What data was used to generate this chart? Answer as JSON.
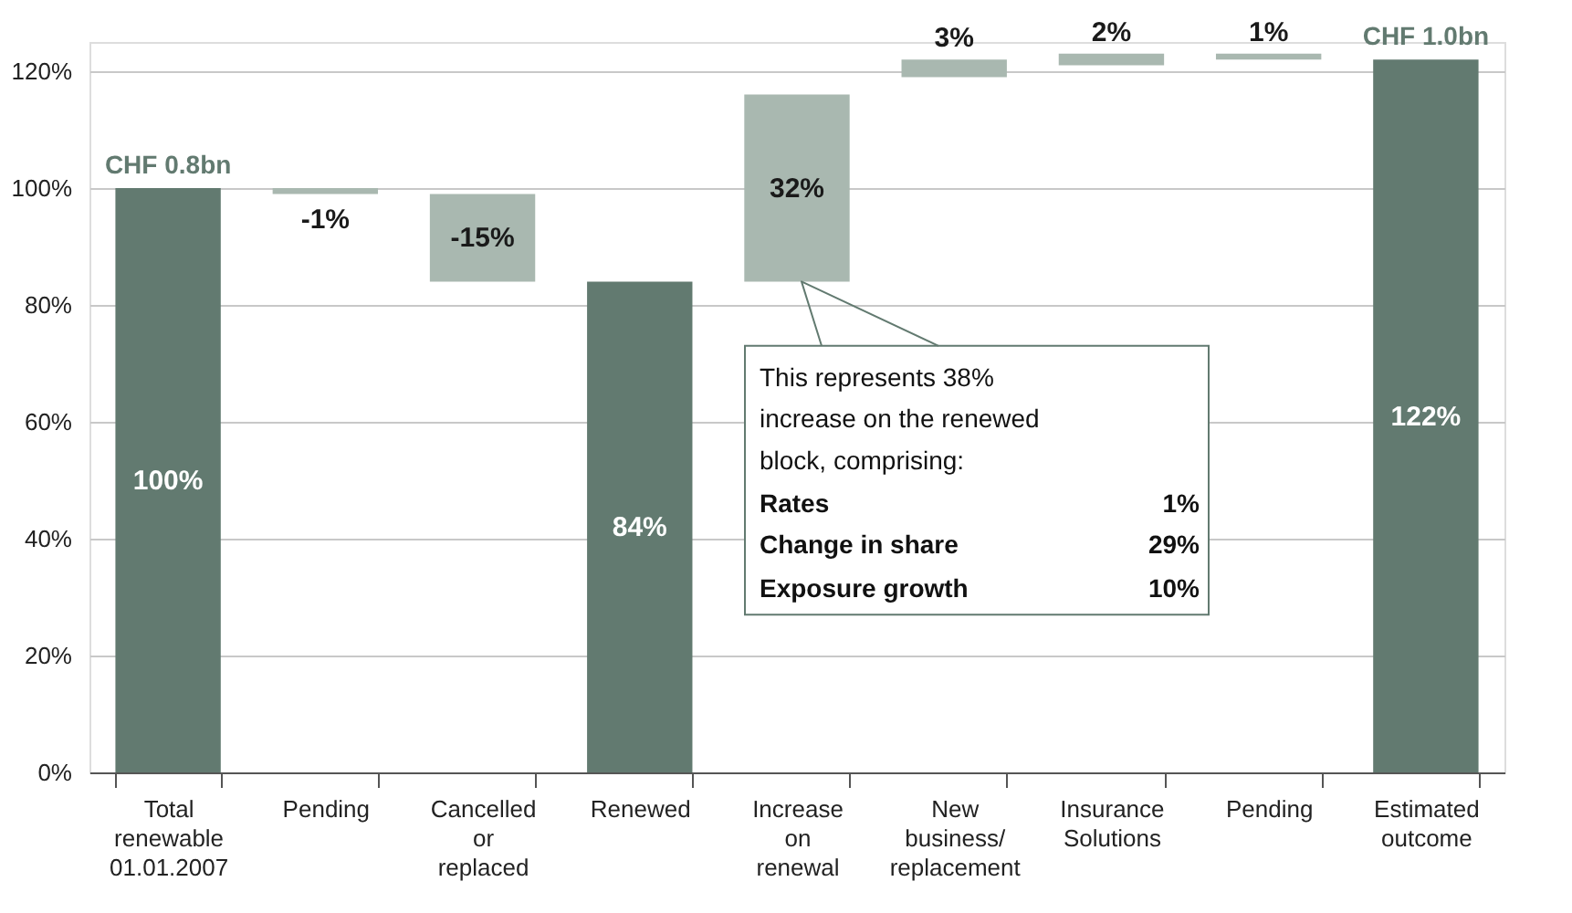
{
  "chart_data": {
    "type": "bar",
    "categories": [
      "Total renewable 01.01.2007",
      "Pending",
      "Cancelled or replaced",
      "Renewed",
      "Increase on renewal",
      "New business/ replacement",
      "Insurance Solutions",
      "Pending",
      "Estimated outcome"
    ],
    "values": [
      100,
      -1,
      -15,
      84,
      32,
      3,
      2,
      1,
      122
    ],
    "base": [
      0,
      100,
      99,
      0,
      84,
      119,
      121,
      122,
      0
    ],
    "colors": [
      "#627a70",
      "#a9b8b0",
      "#a9b8b0",
      "#627a70",
      "#a9b8b0",
      "#a9b8b0",
      "#a9b8b0",
      "#a9b8b0",
      "#627a70"
    ],
    "value_labels": [
      "100%",
      "-1%",
      "-15%",
      "84%",
      "32%",
      "3%",
      "2%",
      "1%",
      "122%"
    ],
    "ylim": [
      0,
      125
    ],
    "yticks": [
      {
        "value": 0,
        "label": "0%"
      },
      {
        "value": 20,
        "label": "20%"
      },
      {
        "value": 40,
        "label": "40%"
      },
      {
        "value": 60,
        "label": "60%"
      },
      {
        "value": 80,
        "label": "80%"
      },
      {
        "value": 100,
        "label": "100%"
      },
      {
        "value": 120,
        "label": "120%"
      }
    ],
    "grid": "y",
    "annotations": [
      {
        "text": "CHF 0.8bn",
        "x": "Total renewable 01.01.2007",
        "y": 100
      },
      {
        "text": "CHF 1.0bn",
        "x": "Estimated outcome",
        "y": 122
      },
      "This represents 38%",
      "increase on the renewed",
      "block, comprising:",
      "Rates",
      "1%",
      "Change in share",
      "29%",
      "Exposure growth",
      "10%"
    ]
  }
}
